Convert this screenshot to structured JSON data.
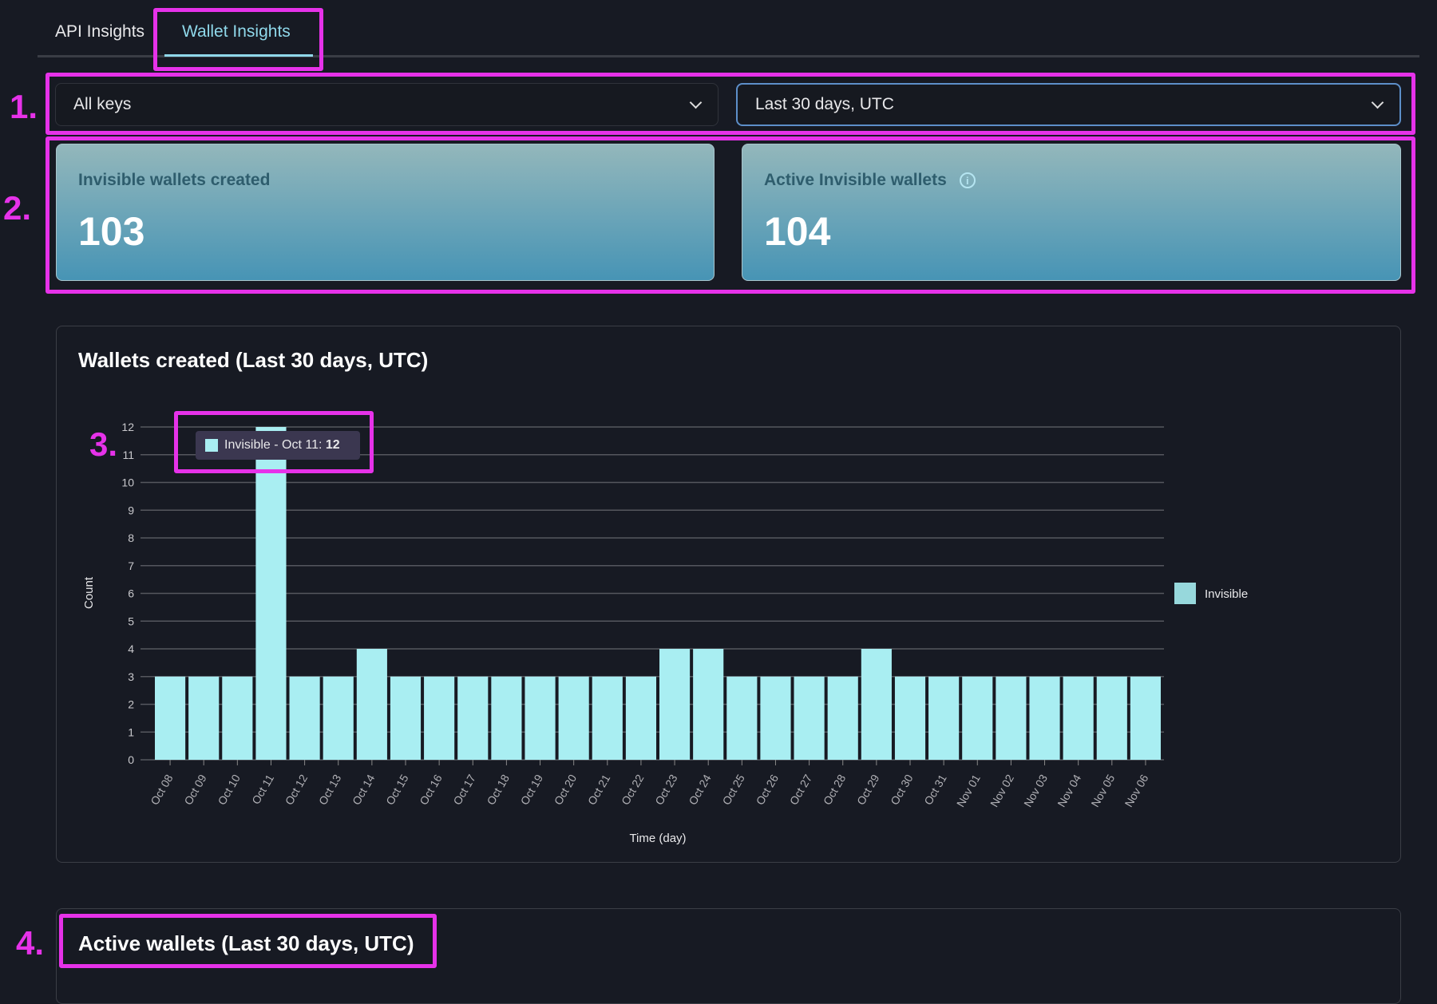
{
  "tabs": [
    {
      "label": "API Insights"
    },
    {
      "label": "Wallet Insights",
      "active": true
    }
  ],
  "filters": {
    "key": "All keys",
    "range": "Last 30 days, UTC"
  },
  "cards": [
    {
      "label": "Invisible wallets created",
      "value": "103"
    },
    {
      "label": "Active Invisible wallets",
      "value": "104",
      "info": "i"
    }
  ],
  "chart_panel": {
    "title": "Wallets created (Last 30 days, UTC)"
  },
  "active_panel": {
    "title": "Active wallets (Last 30 days, UTC)"
  },
  "tooltip": {
    "label": "Invisible - Oct 11: ",
    "value": "12"
  },
  "annotations": [
    "1.",
    "2.",
    "3.",
    "4."
  ],
  "colors": {
    "bar": "#a9eef2",
    "accent": "#8fd8ea",
    "annotation": "#e632e9"
  },
  "chart_data": {
    "type": "bar",
    "title": "Wallets created (Last 30 days, UTC)",
    "xlabel": "Time (day)",
    "ylabel": "Count",
    "ylim": [
      0,
      12
    ],
    "yticks": [
      0,
      1,
      2,
      3,
      4,
      5,
      6,
      7,
      8,
      9,
      10,
      11,
      12
    ],
    "legend": {
      "position": "right",
      "label": "Invisible"
    },
    "categories": [
      "Oct 08",
      "Oct 09",
      "Oct 10",
      "Oct 11",
      "Oct 12",
      "Oct 13",
      "Oct 14",
      "Oct 15",
      "Oct 16",
      "Oct 17",
      "Oct 18",
      "Oct 19",
      "Oct 20",
      "Oct 21",
      "Oct 22",
      "Oct 23",
      "Oct 24",
      "Oct 25",
      "Oct 26",
      "Oct 27",
      "Oct 28",
      "Oct 29",
      "Oct 30",
      "Oct 31",
      "Nov 01",
      "Nov 02",
      "Nov 03",
      "Nov 04",
      "Nov 05",
      "Nov 06"
    ],
    "series": [
      {
        "name": "Invisible",
        "values": [
          3,
          3,
          3,
          12,
          3,
          3,
          4,
          3,
          3,
          3,
          3,
          3,
          3,
          3,
          3,
          4,
          4,
          3,
          3,
          3,
          3,
          4,
          3,
          3,
          3,
          3,
          3,
          3,
          3,
          3
        ]
      }
    ]
  }
}
